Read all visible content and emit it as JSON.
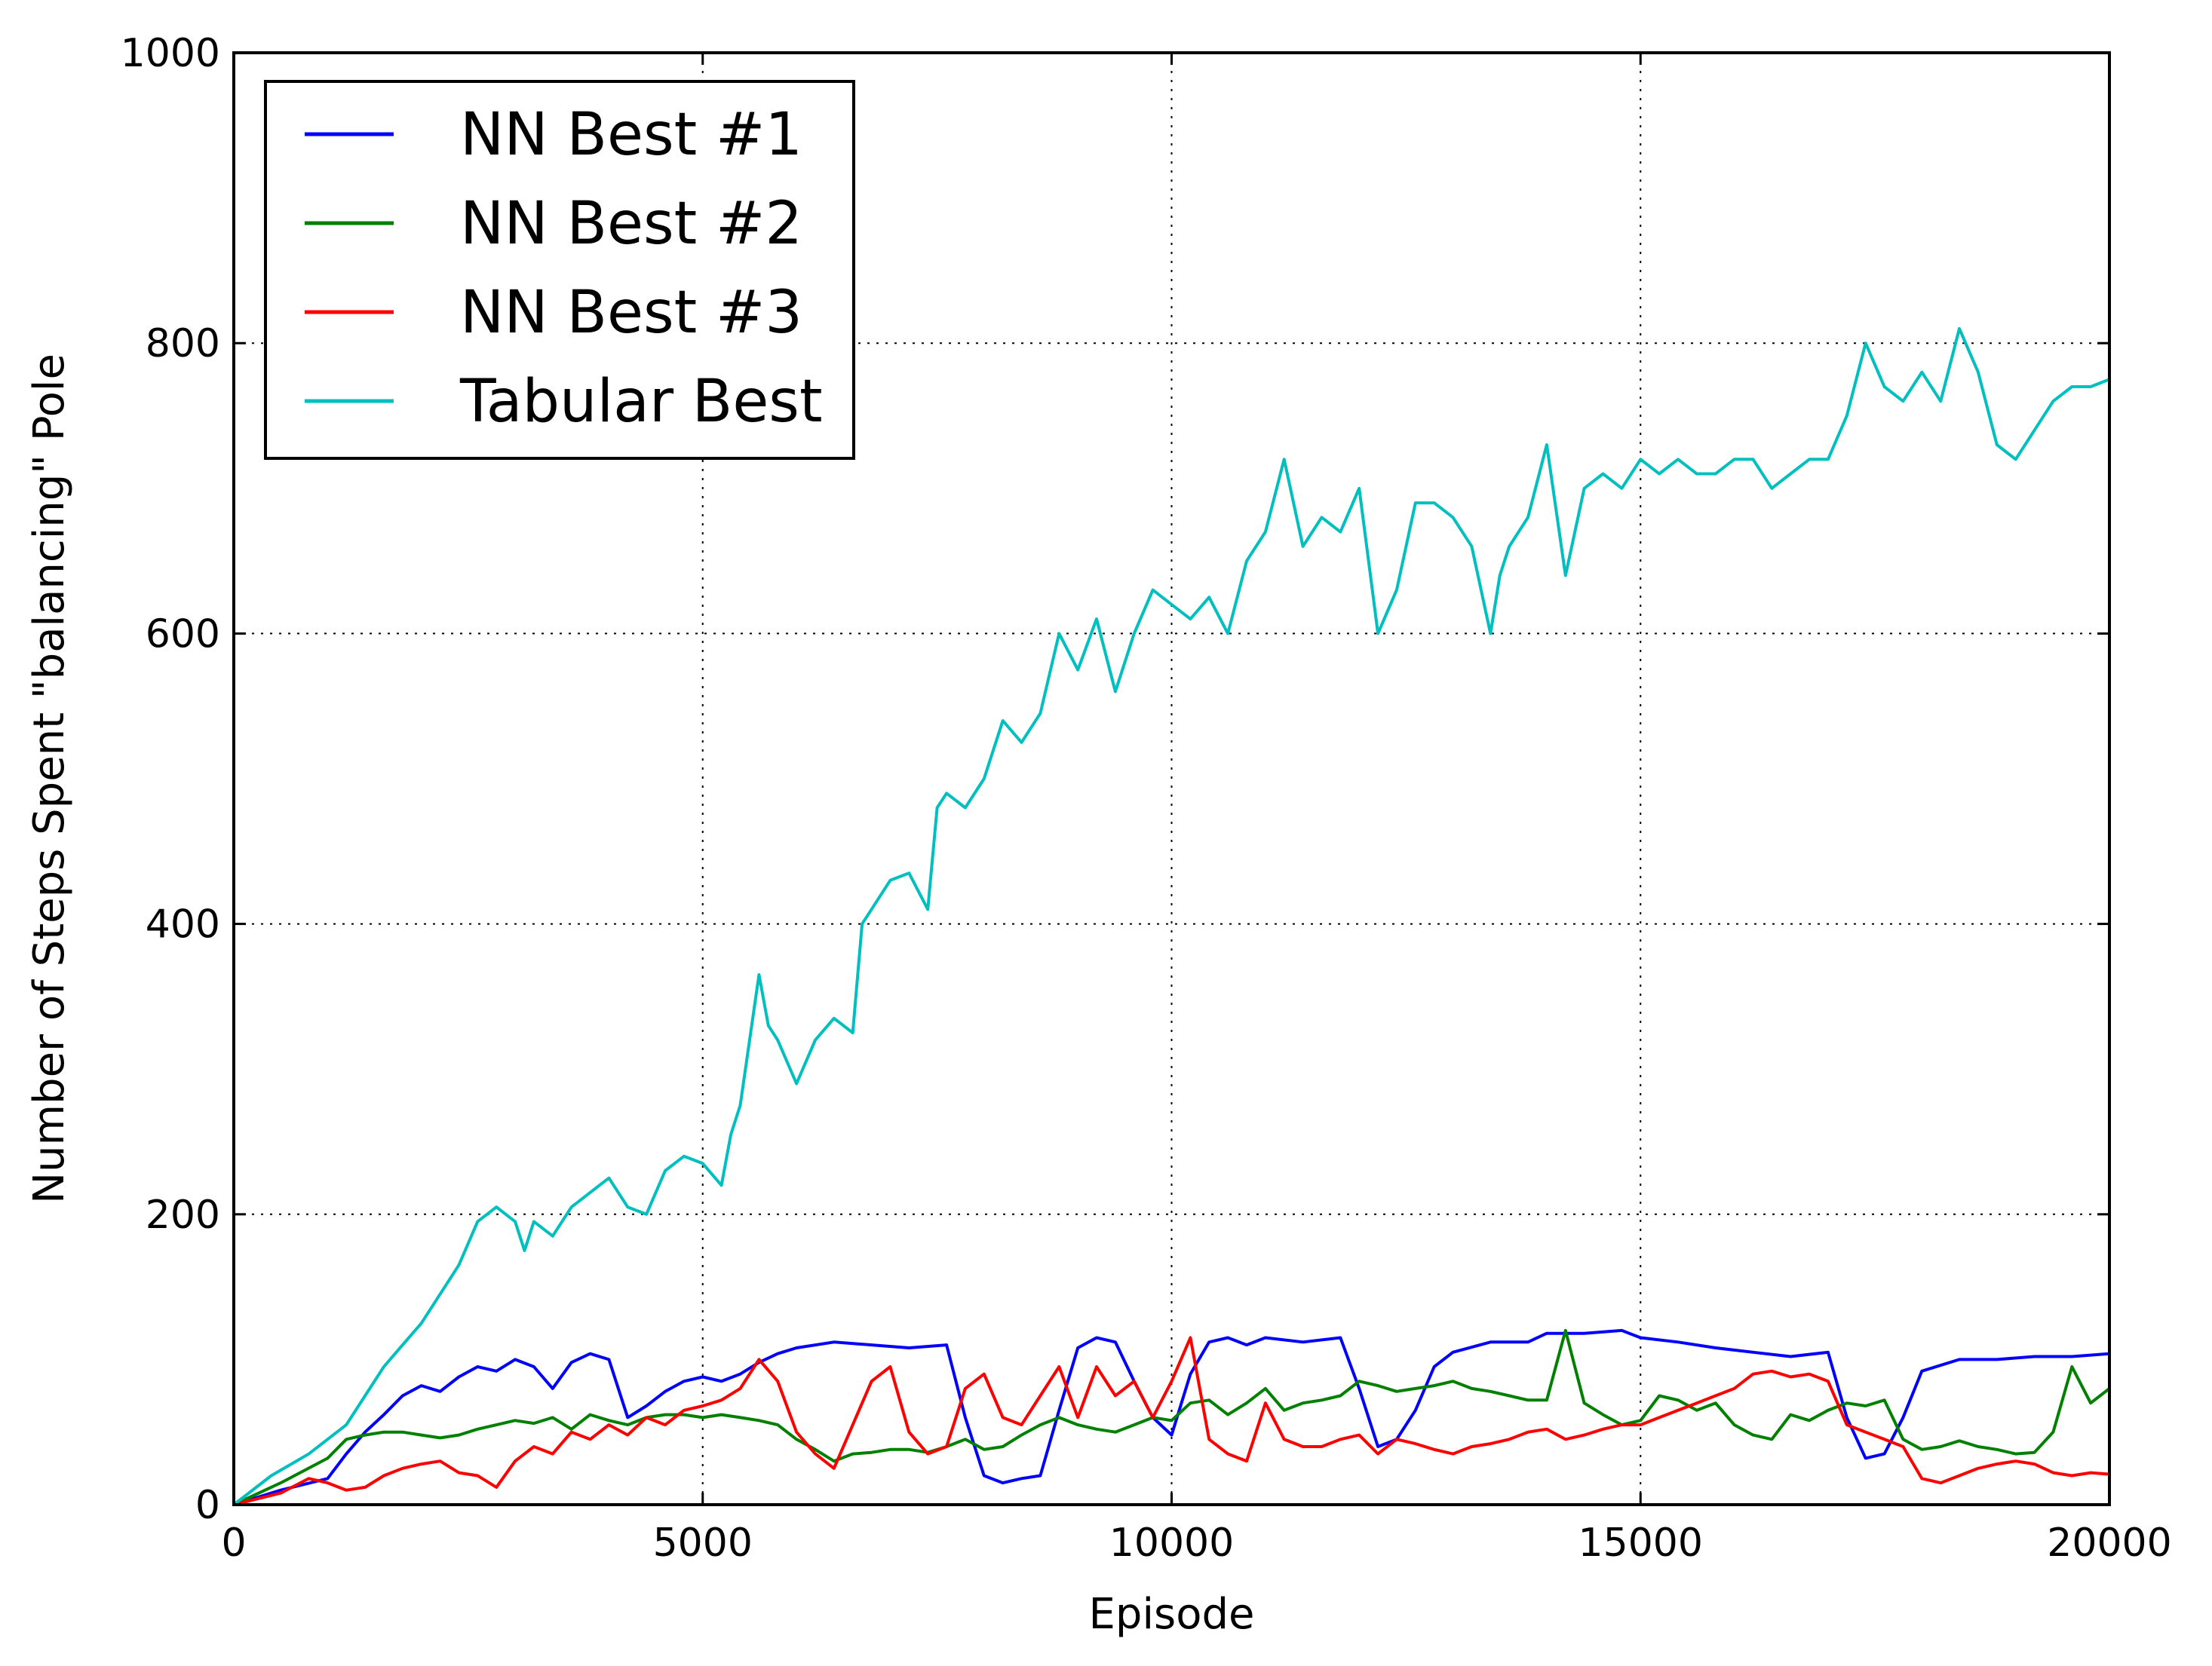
{
  "chart_data": {
    "type": "line",
    "xlabel": "Episode",
    "ylabel": "Number of Steps Spent \"balancing\" Pole",
    "xlim": [
      0,
      20000
    ],
    "ylim": [
      0,
      1000
    ],
    "xticks": [
      0,
      5000,
      10000,
      15000,
      20000
    ],
    "yticks": [
      0,
      200,
      400,
      600,
      800,
      1000
    ],
    "xtick_labels": [
      "0",
      "5000",
      "10000",
      "15000",
      "20000"
    ],
    "ytick_labels": [
      "0",
      "200",
      "400",
      "600",
      "800",
      "1000"
    ],
    "grid": true,
    "legend_position": "top-left",
    "series": [
      {
        "name": "NN Best #1",
        "color": "#0000ff",
        "x": [
          0,
          500,
          1000,
          1200,
          1400,
          1600,
          1800,
          2000,
          2200,
          2400,
          2600,
          2800,
          3000,
          3200,
          3400,
          3600,
          3800,
          4000,
          4200,
          4400,
          4600,
          4800,
          5000,
          5200,
          5400,
          5600,
          5800,
          6000,
          6400,
          6800,
          7200,
          7600,
          7800,
          8000,
          8200,
          8400,
          8600,
          8800,
          9000,
          9200,
          9400,
          9600,
          9800,
          10000,
          10200,
          10400,
          10600,
          10800,
          11000,
          11400,
          11800,
          12000,
          12200,
          12400,
          12600,
          12800,
          13000,
          13400,
          13800,
          14000,
          14400,
          14800,
          15000,
          15400,
          15800,
          16200,
          16600,
          17000,
          17200,
          17400,
          17600,
          17800,
          18000,
          18400,
          18800,
          19200,
          19600,
          20000
        ],
        "y": [
          0,
          10,
          18,
          35,
          50,
          62,
          75,
          82,
          78,
          88,
          95,
          92,
          100,
          95,
          80,
          98,
          104,
          100,
          60,
          68,
          78,
          85,
          88,
          85,
          90,
          98,
          104,
          108,
          112,
          110,
          108,
          110,
          60,
          20,
          15,
          18,
          20,
          65,
          108,
          115,
          112,
          85,
          60,
          48,
          90,
          112,
          115,
          110,
          115,
          112,
          115,
          80,
          40,
          45,
          65,
          95,
          105,
          112,
          112,
          118,
          118,
          120,
          115,
          112,
          108,
          105,
          102,
          105,
          60,
          32,
          35,
          60,
          92,
          100,
          100,
          102,
          102,
          104
        ]
      },
      {
        "name": "NN Best #2",
        "color": "#008000",
        "x": [
          0,
          500,
          1000,
          1200,
          1400,
          1600,
          1800,
          2000,
          2200,
          2400,
          2600,
          2800,
          3000,
          3200,
          3400,
          3600,
          3800,
          4000,
          4200,
          4400,
          4600,
          4800,
          5000,
          5200,
          5400,
          5600,
          5800,
          6000,
          6200,
          6400,
          6600,
          6800,
          7000,
          7200,
          7400,
          7600,
          7800,
          8000,
          8200,
          8400,
          8600,
          8800,
          9000,
          9200,
          9400,
          9600,
          9800,
          10000,
          10200,
          10400,
          10600,
          10800,
          11000,
          11200,
          11400,
          11600,
          11800,
          12000,
          12200,
          12400,
          12600,
          12800,
          13000,
          13200,
          13400,
          13600,
          13800,
          14000,
          14200,
          14400,
          14600,
          14800,
          15000,
          15200,
          15400,
          15600,
          15800,
          16000,
          16200,
          16400,
          16600,
          16800,
          17000,
          17200,
          17400,
          17600,
          17800,
          18000,
          18200,
          18400,
          18600,
          18800,
          19000,
          19200,
          19400,
          19600,
          19800,
          20000
        ],
        "y": [
          0,
          15,
          32,
          45,
          48,
          50,
          50,
          48,
          46,
          48,
          52,
          55,
          58,
          56,
          60,
          52,
          62,
          58,
          55,
          60,
          62,
          62,
          60,
          62,
          60,
          58,
          55,
          45,
          38,
          30,
          35,
          36,
          38,
          38,
          36,
          40,
          45,
          38,
          40,
          48,
          55,
          60,
          55,
          52,
          50,
          55,
          60,
          58,
          70,
          72,
          62,
          70,
          80,
          65,
          70,
          72,
          75,
          85,
          82,
          78,
          80,
          82,
          85,
          80,
          78,
          75,
          72,
          72,
          120,
          70,
          62,
          55,
          58,
          75,
          72,
          65,
          70,
          55,
          48,
          45,
          62,
          58,
          65,
          70,
          68,
          72,
          45,
          38,
          40,
          44,
          40,
          38,
          35,
          36,
          50,
          95,
          70,
          80
        ]
      },
      {
        "name": "NN Best #3",
        "color": "#ff0000",
        "x": [
          0,
          500,
          800,
          1000,
          1200,
          1400,
          1600,
          1800,
          2000,
          2200,
          2400,
          2600,
          2800,
          3000,
          3200,
          3400,
          3600,
          3800,
          4000,
          4200,
          4400,
          4600,
          4800,
          5000,
          5200,
          5400,
          5600,
          5800,
          6000,
          6200,
          6400,
          6600,
          6800,
          7000,
          7200,
          7400,
          7600,
          7800,
          8000,
          8200,
          8400,
          8600,
          8800,
          9000,
          9200,
          9400,
          9600,
          9800,
          10000,
          10200,
          10400,
          10600,
          10800,
          11000,
          11200,
          11400,
          11600,
          11800,
          12000,
          12200,
          12400,
          12600,
          12800,
          13000,
          13200,
          13400,
          13600,
          13800,
          14000,
          14200,
          14400,
          14600,
          14800,
          15000,
          15200,
          15400,
          15600,
          15800,
          16000,
          16200,
          16400,
          16600,
          16800,
          17000,
          17200,
          17400,
          17600,
          17800,
          18000,
          18200,
          18400,
          18600,
          18800,
          19000,
          19200,
          19400,
          19600,
          19800,
          20000
        ],
        "y": [
          0,
          8,
          18,
          15,
          10,
          12,
          20,
          25,
          28,
          30,
          22,
          20,
          12,
          30,
          40,
          35,
          50,
          45,
          55,
          48,
          60,
          55,
          65,
          68,
          72,
          80,
          100,
          85,
          50,
          35,
          25,
          55,
          85,
          95,
          50,
          35,
          40,
          80,
          90,
          60,
          55,
          75,
          95,
          60,
          95,
          75,
          85,
          60,
          85,
          115,
          45,
          35,
          30,
          70,
          45,
          40,
          40,
          45,
          48,
          35,
          45,
          42,
          38,
          35,
          40,
          42,
          45,
          50,
          52,
          45,
          48,
          52,
          55,
          55,
          60,
          65,
          70,
          75,
          80,
          90,
          92,
          88,
          90,
          85,
          55,
          50,
          45,
          40,
          18,
          15,
          20,
          25,
          28,
          30,
          28,
          22,
          20,
          22,
          21
        ]
      },
      {
        "name": "Tabular Best",
        "color": "#00bfbf",
        "x": [
          0,
          400,
          800,
          1200,
          1400,
          1600,
          1800,
          2000,
          2200,
          2400,
          2600,
          2800,
          3000,
          3100,
          3200,
          3400,
          3600,
          3800,
          4000,
          4200,
          4400,
          4600,
          4800,
          5000,
          5200,
          5300,
          5400,
          5600,
          5700,
          5800,
          6000,
          6200,
          6400,
          6600,
          6700,
          6800,
          7000,
          7200,
          7400,
          7500,
          7600,
          7800,
          8000,
          8200,
          8400,
          8600,
          8800,
          9000,
          9200,
          9400,
          9600,
          9800,
          10000,
          10200,
          10400,
          10600,
          10800,
          11000,
          11200,
          11400,
          11600,
          11800,
          12000,
          12200,
          12400,
          12500,
          12600,
          12800,
          13000,
          13200,
          13400,
          13500,
          13600,
          13800,
          14000,
          14200,
          14400,
          14600,
          14800,
          15000,
          15200,
          15400,
          15600,
          15800,
          16000,
          16200,
          16400,
          16600,
          16800,
          17000,
          17200,
          17400,
          17600,
          17800,
          18000,
          18200,
          18400,
          18600,
          18800,
          19000,
          19200,
          19400,
          19600,
          19800,
          20000
        ],
        "y": [
          0,
          20,
          35,
          55,
          75,
          95,
          110,
          125,
          145,
          165,
          195,
          205,
          195,
          175,
          195,
          185,
          205,
          215,
          225,
          205,
          200,
          230,
          240,
          235,
          220,
          255,
          275,
          365,
          330,
          320,
          290,
          320,
          335,
          325,
          400,
          410,
          430,
          435,
          410,
          480,
          490,
          480,
          500,
          540,
          525,
          545,
          600,
          575,
          610,
          560,
          600,
          630,
          620,
          610,
          625,
          600,
          650,
          670,
          720,
          660,
          680,
          670,
          700,
          600,
          630,
          660,
          690,
          690,
          680,
          660,
          600,
          640,
          660,
          680,
          730,
          640,
          700,
          710,
          700,
          720,
          710,
          720,
          710,
          710,
          720,
          720,
          700,
          710,
          720,
          720,
          750,
          800,
          770,
          760,
          780,
          760,
          810,
          780,
          730,
          720,
          740,
          760,
          770,
          770,
          775
        ]
      }
    ]
  }
}
